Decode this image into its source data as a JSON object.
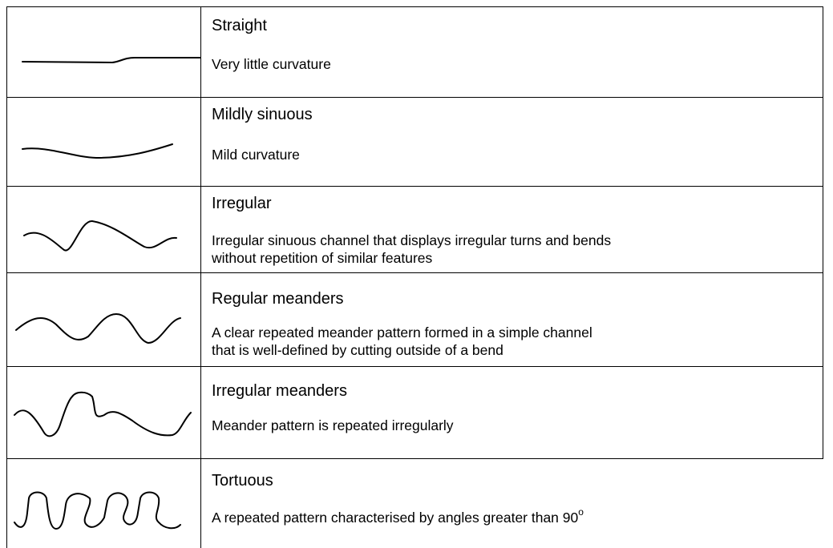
{
  "table": {
    "rows": [
      {
        "title": "Straight",
        "description": [
          "Very little curvature"
        ]
      },
      {
        "title": "Mildly sinuous",
        "description": [
          "Mild curvature"
        ]
      },
      {
        "title": "Irregular",
        "description": [
          "Irregular sinuous channel that displays irregular turns and bends",
          "without repetition of similar features"
        ]
      },
      {
        "title": "Regular meanders",
        "description": [
          "A clear repeated meander pattern formed in a simple channel",
          "that is well-defined by cutting outside of a bend"
        ]
      },
      {
        "title": "Irregular meanders",
        "description": [
          "Meander pattern is repeated irregularly"
        ]
      },
      {
        "title": "Tortuous",
        "description": [
          "A repeated pattern characterised by angles greater than 90"
        ],
        "superscript": "o"
      }
    ]
  }
}
